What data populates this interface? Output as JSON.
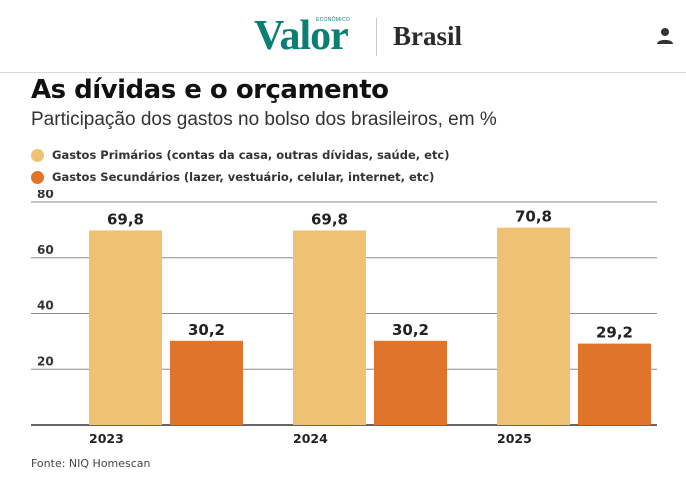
{
  "header": {
    "brand": "Valor",
    "brand_sub": "ECONÔMICO",
    "section": "Brasil",
    "user_icon": "user-icon"
  },
  "colors": {
    "brand": "#0b7f73",
    "primary_series": "#eec173",
    "secondary_series": "#e0742a"
  },
  "chart_data": {
    "type": "bar",
    "title": "As dívidas e o orçamento",
    "subtitle": "Participação dos gastos no bolso dos brasileiros, em %",
    "categories": [
      "2023",
      "2024",
      "2025"
    ],
    "series": [
      {
        "name": "Gastos Primários (contas da casa, outras dívidas, saúde, etc)",
        "color": "#eec173",
        "values": [
          69.8,
          69.8,
          70.8
        ],
        "labels": [
          "69,8",
          "69,8",
          "70,8"
        ]
      },
      {
        "name": "Gastos Secundários (lazer, vestuário, celular, internet, etc)",
        "color": "#e0742a",
        "values": [
          30.2,
          30.2,
          29.2
        ],
        "labels": [
          "30,2",
          "30,2",
          "29,2"
        ]
      }
    ],
    "yticks": [
      20,
      40,
      60,
      80
    ],
    "ylim": [
      0,
      80
    ],
    "grid": true,
    "legend_position": "top-left",
    "source": "Fonte: NIQ Homescan"
  }
}
